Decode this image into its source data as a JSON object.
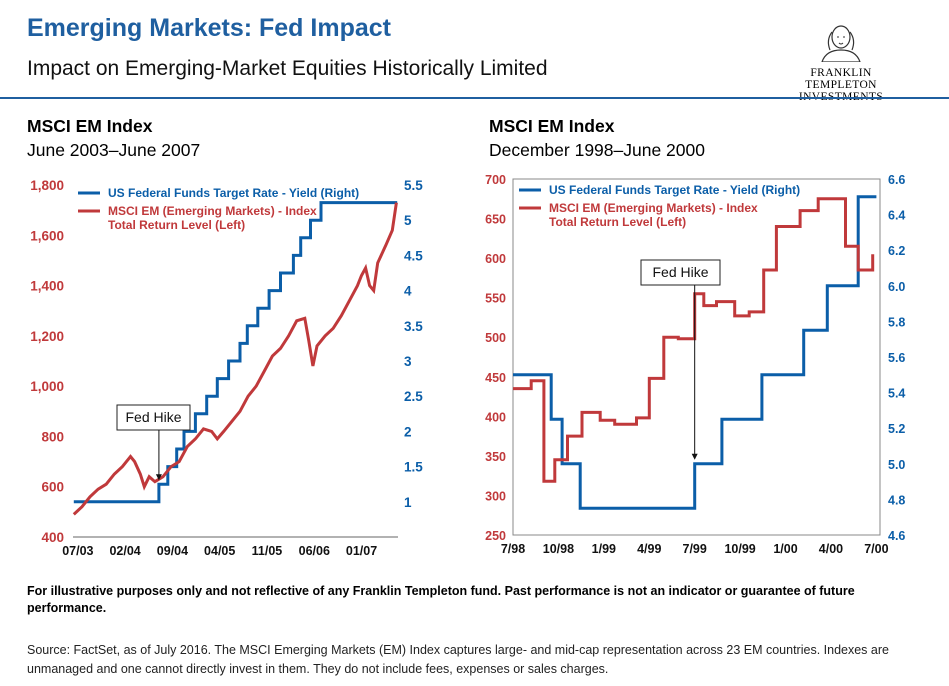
{
  "header": {
    "title": "Emerging Markets: Fed Impact",
    "subtitle": "Impact on Emerging-Market Equities Historically Limited",
    "logo_line1": "FRANKLIN TEMPLETON",
    "logo_line2": "INVESTMENTS"
  },
  "colors": {
    "blue": "#0b5ea8",
    "red": "#c0393b",
    "accent": "#1f5fa0"
  },
  "chart_data": [
    {
      "type": "line",
      "title": "MSCI EM Index",
      "subtitle": "June 2003–June 2007",
      "annotation": "Fed Hike",
      "annotation_date": 2004.5,
      "x_ticks": [
        {
          "t": 2003.5,
          "label": "07/03"
        },
        {
          "t": 2004.083,
          "label": "02/04"
        },
        {
          "t": 2004.667,
          "label": "09/04"
        },
        {
          "t": 2005.25,
          "label": "04/05"
        },
        {
          "t": 2005.833,
          "label": "11/05"
        },
        {
          "t": 2006.417,
          "label": "06/06"
        },
        {
          "t": 2007.0,
          "label": "01/07"
        }
      ],
      "x_range": [
        2003.44,
        2007.45
      ],
      "y_left": {
        "min": 400,
        "max": 1800,
        "ticks": [
          "400",
          "600",
          "800",
          "1,000",
          "1,200",
          "1,400",
          "1,600",
          "1,800"
        ],
        "tick_values": [
          400,
          600,
          800,
          1000,
          1200,
          1400,
          1600,
          1800
        ]
      },
      "y_right": {
        "min": 0.5,
        "max": 5.5,
        "ticks": [
          "1",
          "1.5",
          "2",
          "2.5",
          "3",
          "3.5",
          "4",
          "4.5",
          "5",
          "5.5"
        ],
        "tick_values": [
          1,
          1.5,
          2,
          2.5,
          3,
          3.5,
          4,
          4.5,
          5,
          5.5
        ]
      },
      "legend": "top-left",
      "series": [
        {
          "name": "US Federal Funds Target Rate - Yield (Right)",
          "axis": "right",
          "step": true,
          "points": [
            [
              2003.45,
              1.0
            ],
            [
              2004.5,
              1.25
            ],
            [
              2004.61,
              1.5
            ],
            [
              2004.72,
              1.75
            ],
            [
              2004.81,
              2.0
            ],
            [
              2004.95,
              2.25
            ],
            [
              2005.09,
              2.5
            ],
            [
              2005.22,
              2.75
            ],
            [
              2005.36,
              3.0
            ],
            [
              2005.5,
              3.25
            ],
            [
              2005.59,
              3.5
            ],
            [
              2005.72,
              3.75
            ],
            [
              2005.86,
              4.0
            ],
            [
              2006.0,
              4.25
            ],
            [
              2006.16,
              4.5
            ],
            [
              2006.25,
              4.75
            ],
            [
              2006.37,
              5.0
            ],
            [
              2006.5,
              5.25
            ],
            [
              2007.44,
              5.25
            ]
          ]
        },
        {
          "name": "MSCI EM (Emerging Markets) - Index Total Return Level (Left)",
          "axis": "left",
          "step": false,
          "points": [
            [
              2003.45,
              490
            ],
            [
              2003.55,
              520
            ],
            [
              2003.65,
              560
            ],
            [
              2003.75,
              590
            ],
            [
              2003.85,
              610
            ],
            [
              2003.95,
              650
            ],
            [
              2004.05,
              680
            ],
            [
              2004.15,
              720
            ],
            [
              2004.2,
              700
            ],
            [
              2004.27,
              650
            ],
            [
              2004.32,
              600
            ],
            [
              2004.38,
              640
            ],
            [
              2004.45,
              620
            ],
            [
              2004.55,
              640
            ],
            [
              2004.65,
              680
            ],
            [
              2004.75,
              700
            ],
            [
              2004.85,
              760
            ],
            [
              2004.95,
              790
            ],
            [
              2005.05,
              830
            ],
            [
              2005.15,
              820
            ],
            [
              2005.22,
              790
            ],
            [
              2005.3,
              820
            ],
            [
              2005.4,
              860
            ],
            [
              2005.5,
              900
            ],
            [
              2005.6,
              960
            ],
            [
              2005.7,
              1000
            ],
            [
              2005.8,
              1060
            ],
            [
              2005.9,
              1120
            ],
            [
              2006.0,
              1150
            ],
            [
              2006.1,
              1200
            ],
            [
              2006.2,
              1260
            ],
            [
              2006.3,
              1270
            ],
            [
              2006.35,
              1180
            ],
            [
              2006.4,
              1080
            ],
            [
              2006.45,
              1160
            ],
            [
              2006.55,
              1200
            ],
            [
              2006.65,
              1230
            ],
            [
              2006.75,
              1280
            ],
            [
              2006.85,
              1340
            ],
            [
              2006.95,
              1400
            ],
            [
              2007.0,
              1440
            ],
            [
              2007.05,
              1470
            ],
            [
              2007.1,
              1400
            ],
            [
              2007.15,
              1380
            ],
            [
              2007.2,
              1490
            ],
            [
              2007.3,
              1560
            ],
            [
              2007.38,
              1620
            ],
            [
              2007.43,
              1730
            ]
          ]
        }
      ]
    },
    {
      "type": "line",
      "title": "MSCI EM Index",
      "subtitle": "December 1998–June 2000",
      "annotation": "Fed Hike",
      "annotation_date": 1999.5,
      "x_ticks": [
        {
          "t": 1998.5,
          "label": "7/98"
        },
        {
          "t": 1998.75,
          "label": "10/98"
        },
        {
          "t": 1999.0,
          "label": "1/99"
        },
        {
          "t": 1999.25,
          "label": "4/99"
        },
        {
          "t": 1999.5,
          "label": "7/99"
        },
        {
          "t": 1999.75,
          "label": "10/99"
        },
        {
          "t": 2000.0,
          "label": "1/00"
        },
        {
          "t": 2000.25,
          "label": "4/00"
        },
        {
          "t": 2000.5,
          "label": "7/00"
        }
      ],
      "x_range": [
        1998.5,
        2000.52
      ],
      "y_left": {
        "min": 250,
        "max": 700,
        "ticks": [
          "250",
          "300",
          "350",
          "400",
          "450",
          "500",
          "550",
          "600",
          "650",
          "700"
        ],
        "tick_values": [
          250,
          300,
          350,
          400,
          450,
          500,
          550,
          600,
          650,
          700
        ]
      },
      "y_right": {
        "min": 4.6,
        "max": 6.6,
        "ticks": [
          "4.6",
          "4.8",
          "5.0",
          "5.2",
          "5.4",
          "5.6",
          "5.8",
          "6.0",
          "6.2",
          "6.4",
          "6.6"
        ],
        "tick_values": [
          4.6,
          4.8,
          5.0,
          5.2,
          5.4,
          5.6,
          5.8,
          6.0,
          6.2,
          6.4,
          6.6
        ]
      },
      "legend": "top-left",
      "series": [
        {
          "name": "US Federal Funds Target Rate - Yield (Right)",
          "axis": "right",
          "step": true,
          "points": [
            [
              1998.5,
              5.5
            ],
            [
              1998.71,
              5.25
            ],
            [
              1998.77,
              5.0
            ],
            [
              1998.87,
              4.75
            ],
            [
              1999.5,
              5.0
            ],
            [
              1999.65,
              5.25
            ],
            [
              1999.87,
              5.5
            ],
            [
              2000.1,
              5.75
            ],
            [
              2000.23,
              6.0
            ],
            [
              2000.4,
              6.5
            ],
            [
              2000.5,
              6.5
            ]
          ]
        },
        {
          "name": "MSCI EM (Emerging Markets) - Index Total Return Level (Left)",
          "axis": "left",
          "step": true,
          "points": [
            [
              1998.5,
              435
            ],
            [
              1998.6,
              445
            ],
            [
              1998.67,
              318
            ],
            [
              1998.73,
              345
            ],
            [
              1998.8,
              375
            ],
            [
              1998.88,
              405
            ],
            [
              1998.98,
              395
            ],
            [
              1999.06,
              390
            ],
            [
              1999.18,
              398
            ],
            [
              1999.25,
              448
            ],
            [
              1999.33,
              500
            ],
            [
              1999.41,
              498
            ],
            [
              1999.5,
              555
            ],
            [
              1999.55,
              540
            ],
            [
              1999.62,
              545
            ],
            [
              1999.72,
              527
            ],
            [
              1999.8,
              532
            ],
            [
              1999.88,
              585
            ],
            [
              1999.95,
              640
            ],
            [
              2000.08,
              660
            ],
            [
              2000.18,
              675
            ],
            [
              2000.33,
              615
            ],
            [
              2000.4,
              585
            ],
            [
              2000.48,
              605
            ]
          ]
        }
      ]
    }
  ],
  "footer": {
    "disclaimer": "For illustrative purposes only and not reflective of any Franklin Templeton fund. Past performance is not an indicator or guarantee of future performance.",
    "source": "Source: FactSet, as of July 2016. The MSCI Emerging Markets (EM) Index captures large- and mid-cap representation across 23 EM countries. Indexes are unmanaged and one cannot directly invest in them. They do not include fees, expenses or sales charges."
  }
}
